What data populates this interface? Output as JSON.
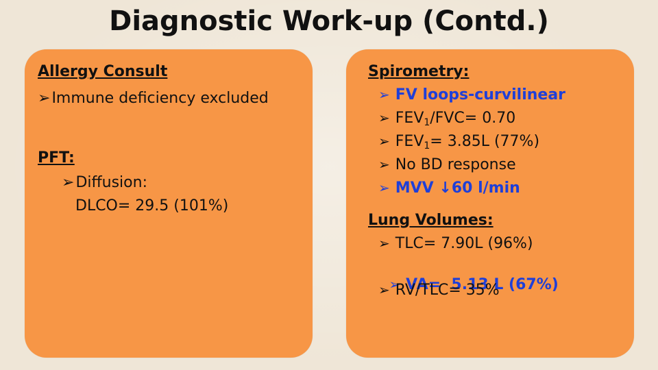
{
  "title": "Diagnostic Work-up (Contd.)",
  "left": {
    "allergy_heading": "Allergy Consult",
    "allergy_item": "Immune deficiency excluded",
    "pft_heading": "PFT:",
    "diffusion_label": "Diffusion:",
    "dlco_value": "DLCO= 29.5 (101%)"
  },
  "right": {
    "spirometry_heading": "Spirometry:",
    "spirometry_items": [
      {
        "text": "FV loops-curvilinear"
      },
      {
        "prefix": "FEV",
        "sub": "1",
        "suffix": "/FVC= 0.70"
      },
      {
        "prefix": "FEV",
        "sub": "1",
        "suffix": "= 3.85L (77%)"
      },
      {
        "text": "No BD response"
      },
      {
        "prefix": "MVV ",
        "arrow": "↓",
        "suffix": "60 l/min"
      }
    ],
    "lung_heading": "Lung Volumes:",
    "lung_items": [
      {
        "text": "TLC= 7.90L (96%)"
      },
      {
        "text": "VA=  5.13 L (67%)"
      },
      {
        "text": "RV/TLC= 35%"
      }
    ]
  },
  "colors": {
    "panel": "#f79646",
    "highlight": "#1f3fd8",
    "background": "#efe6d7"
  },
  "icons": {
    "bullet": "arrowhead-bullet-icon"
  }
}
